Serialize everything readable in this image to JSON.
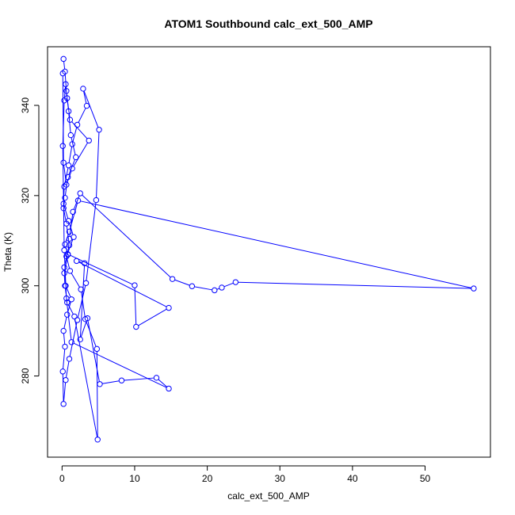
{
  "chart_data": {
    "type": "line",
    "title": "ATOM1 Southbound calc_ext_500_AMP",
    "xlabel": "calc_ext_500_AMP",
    "ylabel": "Theta (K)",
    "xlim": [
      -2,
      59
    ],
    "ylim": [
      262,
      353
    ],
    "xticks": [
      0,
      10,
      20,
      30,
      40,
      50
    ],
    "yticks": [
      280,
      300,
      320,
      340
    ],
    "xtick_labels": [
      "0",
      "10",
      "20",
      "30",
      "40",
      "50"
    ],
    "ytick_labels": [
      "280",
      "300",
      "320",
      "340"
    ],
    "grid": false,
    "legend": "none",
    "series_color": "#0000ff",
    "series": [
      {
        "values": [
          [
            0.2,
            350.3
          ],
          [
            0.4,
            347.5
          ],
          [
            0.6,
            343.2
          ],
          [
            0.9,
            338.7
          ],
          [
            1.2,
            333.4
          ],
          [
            1.9,
            328.5
          ],
          [
            0.8,
            324.1
          ],
          [
            0.4,
            319.5
          ],
          [
            0.2,
            317.2
          ],
          [
            0.6,
            313.8
          ],
          [
            1.0,
            309.0
          ],
          [
            0.3,
            304.1
          ],
          [
            0.5,
            300.0
          ],
          [
            1.3,
            297.0
          ],
          [
            0.7,
            293.6
          ],
          [
            0.2,
            290.0
          ],
          [
            0.4,
            286.5
          ],
          [
            0.1,
            281.0
          ],
          [
            0.2,
            273.8
          ],
          [
            0.5,
            279.1
          ],
          [
            1.0,
            283.8
          ],
          [
            2.1,
            292.4
          ],
          [
            3.3,
            300.6
          ],
          [
            4.7,
            319.0
          ],
          [
            5.1,
            334.6
          ],
          [
            2.9,
            343.7
          ],
          [
            3.4,
            339.9
          ],
          [
            2.1,
            335.7
          ],
          [
            1.4,
            331.4
          ],
          [
            0.9,
            326.7
          ],
          [
            0.3,
            322.0
          ],
          [
            0.2,
            318.2
          ],
          [
            0.9,
            314.4
          ],
          [
            1.6,
            310.8
          ],
          [
            0.6,
            306.5
          ],
          [
            1.1,
            303.3
          ],
          [
            2.6,
            299.2
          ],
          [
            3.2,
            292.6
          ],
          [
            4.8,
            286.0
          ],
          [
            4.9,
            265.9
          ],
          [
            1.7,
            293.2
          ],
          [
            0.7,
            296.3
          ],
          [
            0.4,
            300.0
          ],
          [
            0.3,
            302.8
          ],
          [
            0.8,
            306.9
          ],
          [
            1.0,
            310.4
          ],
          [
            1.5,
            316.4
          ],
          [
            2.5,
            320.5
          ],
          [
            15.2,
            301.5
          ],
          [
            17.9,
            299.9
          ],
          [
            21.0,
            299.0
          ],
          [
            22.0,
            299.6
          ],
          [
            23.9,
            300.8
          ],
          [
            56.7,
            299.4
          ],
          [
            2.2,
            318.9
          ],
          [
            1.0,
            312.0
          ],
          [
            0.4,
            309.2
          ],
          [
            0.8,
            307.0
          ],
          [
            10.0,
            300.1
          ],
          [
            10.2,
            290.9
          ],
          [
            14.7,
            295.1
          ],
          [
            2.0,
            305.5
          ],
          [
            3.1,
            305.0
          ],
          [
            2.5,
            288.1
          ],
          [
            3.5,
            292.8
          ],
          [
            5.2,
            278.2
          ],
          [
            8.2,
            279.0
          ],
          [
            13.0,
            279.6
          ],
          [
            14.7,
            277.2
          ],
          [
            1.3,
            287.5
          ],
          [
            0.6,
            297.2
          ],
          [
            0.3,
            307.9
          ],
          [
            0.1,
            331.0
          ],
          [
            0.3,
            341.1
          ],
          [
            0.5,
            344.7
          ],
          [
            0.7,
            341.6
          ],
          [
            1.1,
            336.8
          ],
          [
            3.7,
            332.2
          ],
          [
            1.4,
            326.0
          ],
          [
            0.6,
            322.4
          ],
          [
            0.2,
            327.3
          ],
          [
            0.1,
            347.1
          ]
        ]
      }
    ]
  }
}
